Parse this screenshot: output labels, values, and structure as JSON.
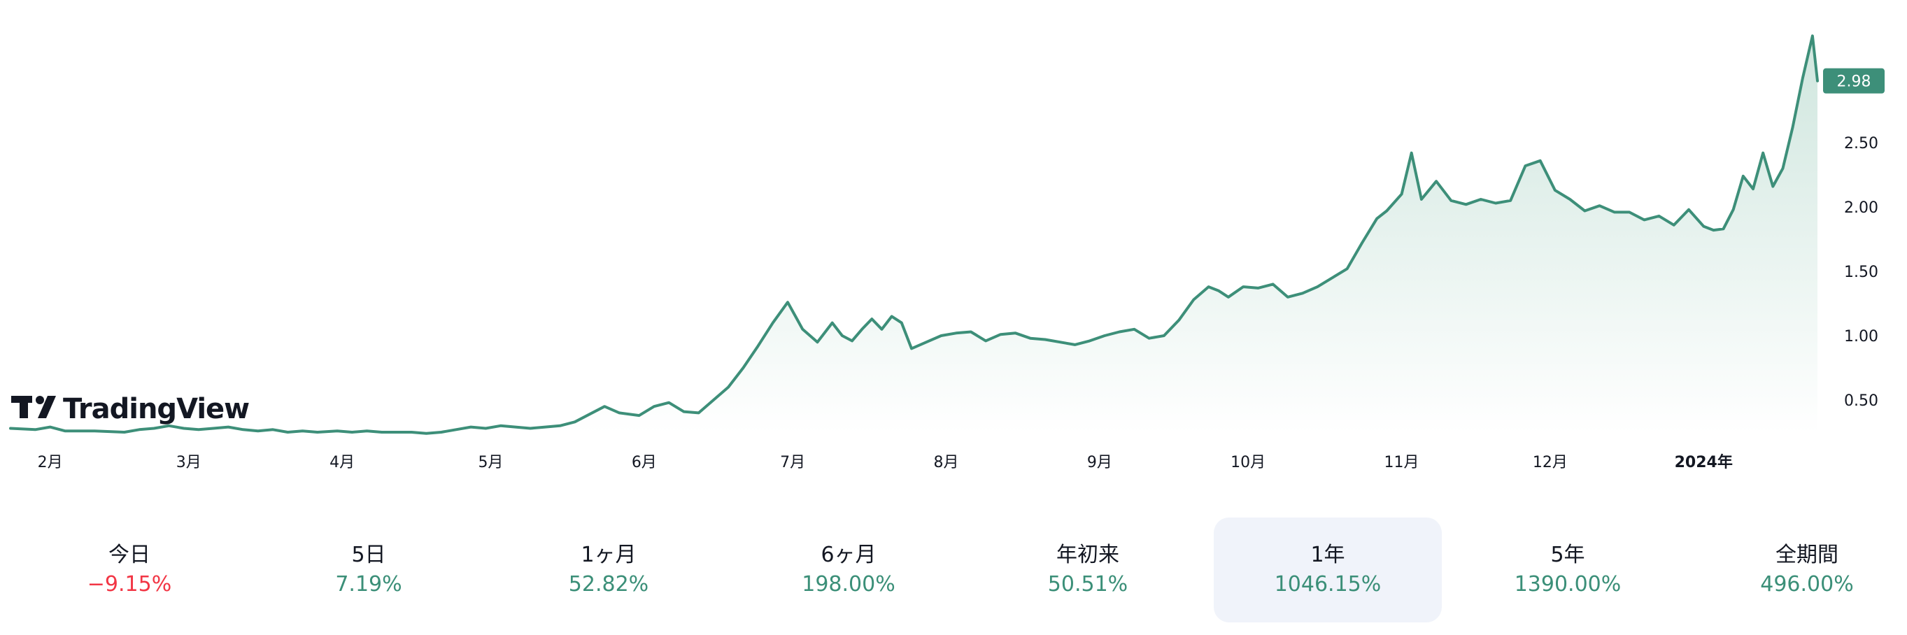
{
  "brand": {
    "name": "TradingView",
    "logo_icon": "tradingview-logo-icon"
  },
  "colors": {
    "line": "#3d8f79",
    "area_top": "#cfe6de",
    "area_bottom": "#ffffff",
    "price_badge": "#3d8f79",
    "positive": "#3b8f78",
    "negative": "#f23645",
    "active_bg": "#f0f3fa"
  },
  "chart_data": {
    "type": "area",
    "title": "",
    "xlabel": "",
    "ylabel": "",
    "x_ticks": [
      {
        "label": "2月",
        "date": "2023-02-01"
      },
      {
        "label": "3月",
        "date": "2023-03-01"
      },
      {
        "label": "4月",
        "date": "2023-04-01"
      },
      {
        "label": "5月",
        "date": "2023-05-01"
      },
      {
        "label": "6月",
        "date": "2023-06-01"
      },
      {
        "label": "7月",
        "date": "2023-07-01"
      },
      {
        "label": "8月",
        "date": "2023-08-01"
      },
      {
        "label": "9月",
        "date": "2023-09-01"
      },
      {
        "label": "10月",
        "date": "2023-10-01"
      },
      {
        "label": "11月",
        "date": "2023-11-01"
      },
      {
        "label": "12月",
        "date": "2023-12-01"
      },
      {
        "label": "2024年",
        "date": "2024-01-01",
        "bold": true
      }
    ],
    "y_ticks": [
      "0.50",
      "1.00",
      "1.50",
      "2.00",
      "2.50"
    ],
    "y_tick_values": [
      0.5,
      1.0,
      1.5,
      2.0,
      2.5
    ],
    "ylim": [
      0.23,
      3.28
    ],
    "xlim": [
      "2023-01-24",
      "2024-01-24"
    ],
    "last_price_label": "2.98",
    "last_price": 2.98,
    "grid": false,
    "series": [
      {
        "x": [
          "2023-01-24",
          "2023-01-29",
          "2023-02-01",
          "2023-02-04",
          "2023-02-10",
          "2023-02-16",
          "2023-02-19",
          "2023-02-22",
          "2023-02-25",
          "2023-02-28",
          "2023-03-03",
          "2023-03-06",
          "2023-03-09",
          "2023-03-12",
          "2023-03-15",
          "2023-03-18",
          "2023-03-21",
          "2023-03-24",
          "2023-03-27",
          "2023-03-31",
          "2023-04-03",
          "2023-04-06",
          "2023-04-09",
          "2023-04-12",
          "2023-04-15",
          "2023-04-18",
          "2023-04-21",
          "2023-04-24",
          "2023-04-27",
          "2023-04-30",
          "2023-05-03",
          "2023-05-06",
          "2023-05-09",
          "2023-05-12",
          "2023-05-15",
          "2023-05-18",
          "2023-05-21",
          "2023-05-24",
          "2023-05-27",
          "2023-05-31",
          "2023-06-03",
          "2023-06-06",
          "2023-06-09",
          "2023-06-12",
          "2023-06-15",
          "2023-06-18",
          "2023-06-21",
          "2023-06-24",
          "2023-06-27",
          "2023-06-30",
          "2023-07-03",
          "2023-07-06",
          "2023-07-09",
          "2023-07-11",
          "2023-07-13",
          "2023-07-15",
          "2023-07-17",
          "2023-07-19",
          "2023-07-21",
          "2023-07-23",
          "2023-07-25",
          "2023-07-28",
          "2023-07-31",
          "2023-08-03",
          "2023-08-06",
          "2023-08-09",
          "2023-08-12",
          "2023-08-15",
          "2023-08-18",
          "2023-08-21",
          "2023-08-24",
          "2023-08-27",
          "2023-08-30",
          "2023-09-02",
          "2023-09-05",
          "2023-09-08",
          "2023-09-11",
          "2023-09-14",
          "2023-09-17",
          "2023-09-20",
          "2023-09-23",
          "2023-09-25",
          "2023-09-27",
          "2023-09-30",
          "2023-10-03",
          "2023-10-06",
          "2023-10-09",
          "2023-10-12",
          "2023-10-15",
          "2023-10-18",
          "2023-10-21",
          "2023-10-24",
          "2023-10-27",
          "2023-10-29",
          "2023-11-01",
          "2023-11-03",
          "2023-11-05",
          "2023-11-08",
          "2023-11-11",
          "2023-11-14",
          "2023-11-17",
          "2023-11-20",
          "2023-11-23",
          "2023-11-26",
          "2023-11-29",
          "2023-12-02",
          "2023-12-05",
          "2023-12-08",
          "2023-12-11",
          "2023-12-14",
          "2023-12-17",
          "2023-12-20",
          "2023-12-23",
          "2023-12-26",
          "2023-12-29",
          "2024-01-01",
          "2024-01-03",
          "2024-01-05",
          "2024-01-07",
          "2024-01-09",
          "2024-01-11",
          "2024-01-13",
          "2024-01-15",
          "2024-01-17",
          "2024-01-19",
          "2024-01-21",
          "2024-01-23",
          "2024-01-24"
        ],
        "y": [
          0.28,
          0.27,
          0.29,
          0.26,
          0.26,
          0.25,
          0.27,
          0.28,
          0.3,
          0.28,
          0.27,
          0.28,
          0.29,
          0.27,
          0.26,
          0.27,
          0.25,
          0.26,
          0.25,
          0.26,
          0.25,
          0.26,
          0.25,
          0.25,
          0.25,
          0.24,
          0.25,
          0.27,
          0.29,
          0.28,
          0.3,
          0.29,
          0.28,
          0.29,
          0.3,
          0.33,
          0.39,
          0.45,
          0.4,
          0.38,
          0.45,
          0.48,
          0.41,
          0.4,
          0.5,
          0.6,
          0.75,
          0.92,
          1.1,
          1.26,
          1.05,
          0.95,
          1.1,
          1.0,
          0.96,
          1.05,
          1.13,
          1.05,
          1.15,
          1.1,
          0.9,
          0.95,
          1.0,
          1.02,
          1.03,
          0.96,
          1.01,
          1.02,
          0.98,
          0.97,
          0.95,
          0.93,
          0.96,
          1.0,
          1.03,
          1.05,
          0.98,
          1.0,
          1.12,
          1.28,
          1.38,
          1.35,
          1.3,
          1.38,
          1.37,
          1.4,
          1.3,
          1.33,
          1.38,
          1.45,
          1.52,
          1.72,
          1.91,
          1.97,
          2.1,
          2.42,
          2.06,
          2.2,
          2.05,
          2.02,
          2.06,
          2.03,
          2.05,
          2.32,
          2.36,
          2.13,
          2.06,
          1.97,
          2.01,
          1.96,
          1.96,
          1.9,
          1.93,
          1.86,
          1.98,
          1.85,
          1.82,
          1.83,
          1.98,
          2.24,
          2.14,
          2.42,
          2.16,
          2.3,
          2.62,
          3.0,
          3.33,
          2.98
        ]
      }
    ]
  },
  "periods": [
    {
      "label": "今日",
      "value": "−9.15%",
      "sign": "neg",
      "active": false
    },
    {
      "label": "5日",
      "value": "7.19%",
      "sign": "pos",
      "active": false
    },
    {
      "label": "1ヶ月",
      "value": "52.82%",
      "sign": "pos",
      "active": false
    },
    {
      "label": "6ヶ月",
      "value": "198.00%",
      "sign": "pos",
      "active": false
    },
    {
      "label": "年初来",
      "value": "50.51%",
      "sign": "pos",
      "active": false
    },
    {
      "label": "1年",
      "value": "1046.15%",
      "sign": "pos",
      "active": true
    },
    {
      "label": "5年",
      "value": "1390.00%",
      "sign": "pos",
      "active": false
    },
    {
      "label": "全期間",
      "value": "496.00%",
      "sign": "pos",
      "active": false
    }
  ]
}
